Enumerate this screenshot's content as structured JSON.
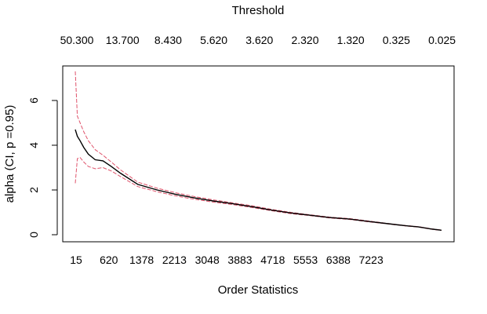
{
  "chart_data": {
    "type": "line",
    "title": "",
    "top_axis_label": "Threshold",
    "top_ticks": [
      "50.300",
      "13.700",
      "8.430",
      "5.620",
      "3.620",
      "2.320",
      "1.320",
      "0.325",
      "0.025"
    ],
    "xlabel": "Order Statistics",
    "x_ticks": [
      15,
      620,
      1378,
      2213,
      3048,
      3883,
      4718,
      5553,
      6388,
      7223
    ],
    "xlim": [
      15,
      8000
    ],
    "ylabel": "alpha (CI, p =0.95)",
    "y_ticks": [
      0,
      2,
      4,
      6
    ],
    "ylim": [
      0,
      7.6
    ],
    "grid": false,
    "legend": "none",
    "series": [
      {
        "role": "estimate",
        "color": "#000000",
        "x": [
          15,
          60,
          120,
          200,
          300,
          450,
          620,
          800,
          1000,
          1378,
          1800,
          2213,
          2600,
          3048,
          3400,
          3883,
          4300,
          4718,
          5100,
          5553,
          6000,
          6388,
          6800,
          7223,
          7500,
          7800,
          8000
        ],
        "y": [
          4.7,
          4.4,
          4.2,
          3.9,
          3.6,
          3.35,
          3.3,
          3.05,
          2.75,
          2.25,
          2.0,
          1.8,
          1.65,
          1.5,
          1.4,
          1.25,
          1.1,
          0.97,
          0.88,
          0.77,
          0.7,
          0.6,
          0.5,
          0.4,
          0.35,
          0.25,
          0.2
        ]
      },
      {
        "role": "ci-upper",
        "color": "#df536b",
        "x": [
          15,
          60,
          120,
          200,
          300,
          450,
          620,
          800,
          1000,
          1378,
          1800,
          2213,
          2600,
          3048,
          3400,
          3883,
          4300,
          4718,
          5100,
          5553,
          6000,
          6388,
          6800,
          7223,
          7500,
          7800,
          8000
        ],
        "y": [
          7.3,
          5.3,
          5.0,
          4.6,
          4.2,
          3.8,
          3.55,
          3.25,
          2.9,
          2.35,
          2.08,
          1.87,
          1.71,
          1.55,
          1.44,
          1.29,
          1.13,
          1.0,
          0.9,
          0.79,
          0.72,
          0.62,
          0.51,
          0.41,
          0.36,
          0.26,
          0.21
        ]
      },
      {
        "role": "ci-lower",
        "color": "#df536b",
        "x": [
          15,
          60,
          120,
          200,
          300,
          450,
          620,
          800,
          1000,
          1378,
          1800,
          2213,
          2600,
          3048,
          3400,
          3883,
          4300,
          4718,
          5100,
          5553,
          6000,
          6388,
          6800,
          7223,
          7500,
          7800,
          8000
        ],
        "y": [
          2.3,
          3.4,
          3.45,
          3.25,
          3.05,
          2.95,
          3.0,
          2.85,
          2.6,
          2.15,
          1.92,
          1.73,
          1.59,
          1.45,
          1.36,
          1.21,
          1.07,
          0.94,
          0.86,
          0.75,
          0.68,
          0.58,
          0.49,
          0.39,
          0.34,
          0.24,
          0.19
        ]
      }
    ]
  }
}
